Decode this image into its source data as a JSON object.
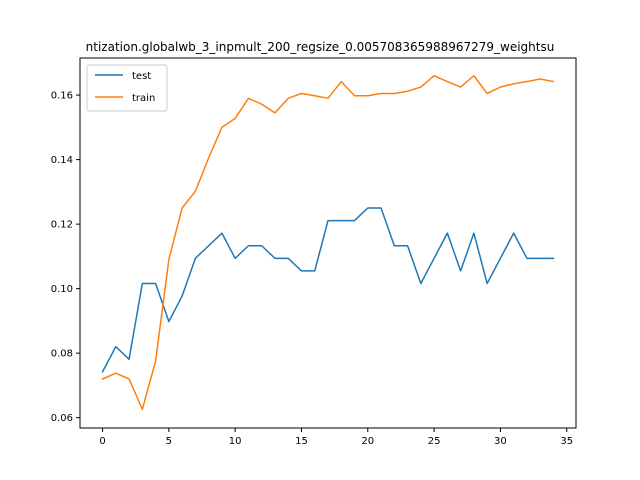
{
  "chart_data": {
    "type": "line",
    "title": "ntization.globalwb_3_inpmult_200_regsize_0.005708365988967279_weightsu",
    "xlabel": "",
    "ylabel": "",
    "xlim": [
      -1.7,
      35.7
    ],
    "ylim": [
      0.0568,
      0.1715
    ],
    "xticks": [
      0,
      5,
      10,
      15,
      20,
      25,
      30,
      35
    ],
    "yticks": [
      0.06,
      0.08,
      0.1,
      0.12,
      0.14,
      0.16
    ],
    "ytick_labels": [
      "0.06",
      "0.08",
      "0.10",
      "0.12",
      "0.14",
      "0.16"
    ],
    "grid": false,
    "legend_position": "upper-left",
    "x": [
      0,
      1,
      2,
      3,
      4,
      5,
      6,
      7,
      8,
      9,
      10,
      11,
      12,
      13,
      14,
      15,
      16,
      17,
      18,
      19,
      20,
      21,
      22,
      23,
      24,
      25,
      26,
      27,
      28,
      29,
      30,
      31,
      32,
      33,
      34
    ],
    "series": [
      {
        "name": "test",
        "color": "#1f77b4",
        "values": [
          0.0742,
          0.082,
          0.0781,
          0.1016,
          0.1016,
          0.0898,
          0.0977,
          0.1094,
          0.1133,
          0.1172,
          0.1094,
          0.1133,
          0.1133,
          0.1094,
          0.1094,
          0.1055,
          0.1055,
          0.1211,
          0.1211,
          0.1211,
          0.125,
          0.125,
          0.1133,
          0.1133,
          0.1016,
          0.1094,
          0.1172,
          0.1055,
          0.1172,
          0.1016,
          0.1094,
          0.1172,
          0.1094,
          0.1094,
          0.1094
        ]
      },
      {
        "name": "train",
        "color": "#ff7f0e",
        "values": [
          0.072,
          0.0738,
          0.072,
          0.0626,
          0.0775,
          0.109,
          0.125,
          0.1302,
          0.1405,
          0.15,
          0.1528,
          0.159,
          0.1572,
          0.1545,
          0.159,
          0.1605,
          0.1598,
          0.159,
          0.1642,
          0.1598,
          0.1598,
          0.1605,
          0.1605,
          0.1612,
          0.1625,
          0.166,
          0.1642,
          0.1625,
          0.166,
          0.1605,
          0.1625,
          0.1635,
          0.1642,
          0.165,
          0.1642
        ]
      }
    ]
  }
}
